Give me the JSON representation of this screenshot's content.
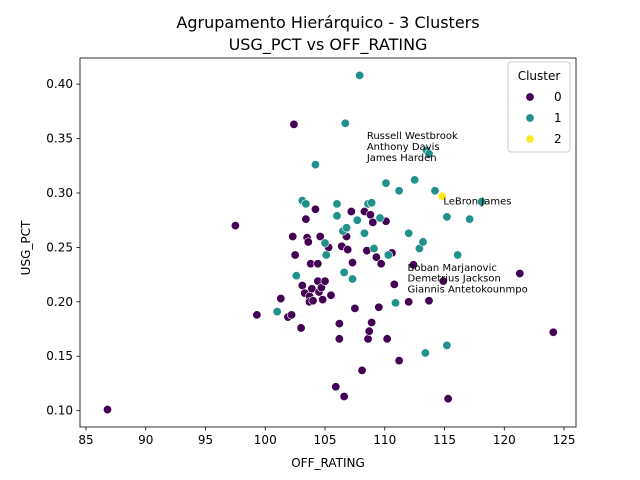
{
  "chart_data": {
    "type": "scatter",
    "title": [
      "Agrupamento Hierárquico - 3 Clusters",
      "USG_PCT vs OFF_RATING"
    ],
    "xlabel": "OFF_RATING",
    "ylabel": "USG_PCT",
    "xlim": [
      84.5,
      126
    ],
    "ylim": [
      0.085,
      0.424
    ],
    "xticks": [
      85,
      90,
      95,
      100,
      105,
      110,
      115,
      120,
      125
    ],
    "yticks": [
      0.1,
      0.15,
      0.2,
      0.25,
      0.3,
      0.35,
      0.4
    ],
    "xtick_labels": [
      "85",
      "90",
      "95",
      "100",
      "105",
      "110",
      "115",
      "120",
      "125"
    ],
    "ytick_labels": [
      "0.10",
      "0.15",
      "0.20",
      "0.25",
      "0.30",
      "0.35",
      "0.40"
    ],
    "grid": false,
    "legend": {
      "title": "Cluster",
      "placement": "top-right",
      "entries": [
        {
          "label": "0",
          "color": "#440154"
        },
        {
          "label": "1",
          "color": "#21918c"
        },
        {
          "label": "2",
          "color": "#fde725"
        }
      ]
    },
    "series": [
      {
        "name": "0",
        "color": "#440154",
        "points": [
          [
            86.8,
            0.101
          ],
          [
            97.5,
            0.27
          ],
          [
            99.3,
            0.188
          ],
          [
            101.3,
            0.203
          ],
          [
            101.9,
            0.186
          ],
          [
            102.2,
            0.188
          ],
          [
            102.3,
            0.26
          ],
          [
            102.4,
            0.363
          ],
          [
            102.5,
            0.243
          ],
          [
            103.0,
            0.176
          ],
          [
            103.1,
            0.215
          ],
          [
            103.3,
            0.208
          ],
          [
            103.4,
            0.276
          ],
          [
            103.5,
            0.259
          ],
          [
            103.6,
            0.255
          ],
          [
            103.7,
            0.205
          ],
          [
            103.7,
            0.2
          ],
          [
            103.8,
            0.235
          ],
          [
            103.9,
            0.212
          ],
          [
            104.0,
            0.201
          ],
          [
            104.2,
            0.285
          ],
          [
            104.4,
            0.235
          ],
          [
            104.4,
            0.219
          ],
          [
            104.5,
            0.209
          ],
          [
            104.6,
            0.26
          ],
          [
            104.7,
            0.213
          ],
          [
            104.8,
            0.202
          ],
          [
            105.0,
            0.219
          ],
          [
            105.3,
            0.25
          ],
          [
            105.5,
            0.206
          ],
          [
            105.9,
            0.122
          ],
          [
            106.2,
            0.18
          ],
          [
            106.2,
            0.166
          ],
          [
            106.4,
            0.251
          ],
          [
            106.6,
            0.113
          ],
          [
            106.8,
            0.26
          ],
          [
            106.9,
            0.248
          ],
          [
            107.2,
            0.283
          ],
          [
            107.3,
            0.236
          ],
          [
            107.5,
            0.194
          ],
          [
            108.1,
            0.137
          ],
          [
            108.3,
            0.283
          ],
          [
            108.5,
            0.247
          ],
          [
            108.6,
            0.166
          ],
          [
            108.7,
            0.173
          ],
          [
            108.8,
            0.28
          ],
          [
            108.9,
            0.181
          ],
          [
            109.0,
            0.273
          ],
          [
            109.3,
            0.241
          ],
          [
            109.5,
            0.195
          ],
          [
            109.7,
            0.235
          ],
          [
            110.1,
            0.274
          ],
          [
            110.2,
            0.166
          ],
          [
            110.6,
            0.245
          ],
          [
            110.8,
            0.216
          ],
          [
            111.2,
            0.146
          ],
          [
            112.0,
            0.2
          ],
          [
            112.4,
            0.234
          ],
          [
            113.7,
            0.201
          ],
          [
            114.9,
            0.219
          ],
          [
            115.3,
            0.111
          ],
          [
            121.3,
            0.226
          ],
          [
            124.1,
            0.172
          ]
        ]
      },
      {
        "name": "1",
        "color": "#21918c",
        "points": [
          [
            101.0,
            0.191
          ],
          [
            102.6,
            0.224
          ],
          [
            103.1,
            0.293
          ],
          [
            103.4,
            0.29
          ],
          [
            104.2,
            0.326
          ],
          [
            105.0,
            0.254
          ],
          [
            105.1,
            0.243
          ],
          [
            106.0,
            0.29
          ],
          [
            106.0,
            0.279
          ],
          [
            106.5,
            0.265
          ],
          [
            106.6,
            0.227
          ],
          [
            106.7,
            0.364
          ],
          [
            106.8,
            0.268
          ],
          [
            107.3,
            0.221
          ],
          [
            107.7,
            0.275
          ],
          [
            107.9,
            0.408
          ],
          [
            108.3,
            0.263
          ],
          [
            108.6,
            0.29
          ],
          [
            108.9,
            0.291
          ],
          [
            109.1,
            0.249
          ],
          [
            109.6,
            0.277
          ],
          [
            110.1,
            0.309
          ],
          [
            110.3,
            0.243
          ],
          [
            110.9,
            0.199
          ],
          [
            111.2,
            0.302
          ],
          [
            112.0,
            0.263
          ],
          [
            112.5,
            0.312
          ],
          [
            112.9,
            0.249
          ],
          [
            113.2,
            0.255
          ],
          [
            113.4,
            0.153
          ],
          [
            113.5,
            0.339
          ],
          [
            113.7,
            0.336
          ],
          [
            114.2,
            0.302
          ],
          [
            115.2,
            0.278
          ],
          [
            115.2,
            0.16
          ],
          [
            116.1,
            0.243
          ],
          [
            117.1,
            0.276
          ],
          [
            118.1,
            0.292
          ]
        ]
      },
      {
        "name": "2",
        "color": "#fde725",
        "points": [
          [
            114.8,
            0.297
          ]
        ]
      }
    ],
    "annotations": [
      {
        "text": "Russell Westbrook",
        "x": 108.5,
        "y": 0.3495
      },
      {
        "text": "Anthony Davis",
        "x": 108.5,
        "y": 0.3395
      },
      {
        "text": "James Harden",
        "x": 108.5,
        "y": 0.3295
      },
      {
        "text": "LeBron James",
        "x": 114.9,
        "y": 0.2895
      },
      {
        "text": "Boban Marjanovic",
        "x": 111.9,
        "y": 0.2285
      },
      {
        "text": "Demetrius Jackson",
        "x": 111.9,
        "y": 0.2185
      },
      {
        "text": "Giannis Antetokounmpo",
        "x": 111.9,
        "y": 0.2085
      }
    ]
  }
}
